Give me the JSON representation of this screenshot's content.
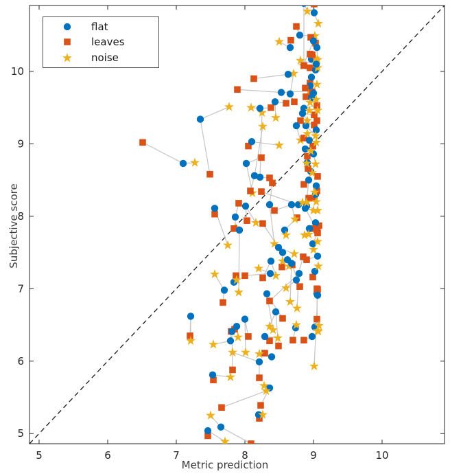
{
  "chart_data": {
    "type": "scatter",
    "title": "",
    "xlabel": "Metric prediction",
    "ylabel": "Subjective score",
    "xlim": [
      4.86,
      10.91
    ],
    "ylim": [
      4.86,
      10.91
    ],
    "xticks": [
      5,
      6,
      7,
      8,
      9,
      10
    ],
    "yticks": [
      5,
      6,
      7,
      8,
      9,
      10
    ],
    "grid": false,
    "legend_position": "top-left",
    "identity_line": {
      "style": "dashed",
      "color": "#1a1a1a",
      "from": [
        4.86,
        4.86
      ],
      "to": [
        10.91,
        10.91
      ]
    },
    "link_line_color": "#c8c8c8",
    "series_meta": [
      {
        "name": "flat",
        "marker": "circle",
        "color": "#0072BD"
      },
      {
        "name": "leaves",
        "marker": "square",
        "color": "#D95319"
      },
      {
        "name": "noise",
        "marker": "star",
        "color": "#EDB120"
      }
    ],
    "groups": [
      {
        "flat": [
          7.1,
          8.73
        ],
        "leaves": [
          6.51,
          9.02
        ],
        "noise": [
          7.27,
          8.74
        ]
      },
      {
        "flat": [
          7.35,
          9.34
        ],
        "leaves": [
          7.49,
          8.58
        ],
        "noise": [
          7.77,
          9.51
        ]
      },
      {
        "flat": [
          7.56,
          8.11
        ],
        "leaves": [
          7.56,
          8.03
        ],
        "noise": [
          7.75,
          7.6
        ]
      },
      {
        "flat": [
          7.21,
          6.62
        ],
        "leaves": [
          7.2,
          6.35
        ],
        "noise": [
          7.21,
          6.28
        ]
      },
      {
        "flat": [
          7.53,
          5.81
        ],
        "leaves": [
          7.54,
          5.74
        ],
        "noise": [
          7.79,
          5.78
        ]
      },
      {
        "flat": [
          7.46,
          5.04
        ],
        "leaves": [
          7.46,
          4.97
        ],
        "noise": [
          7.71,
          4.89
        ]
      },
      {
        "flat": [
          7.65,
          5.09
        ],
        "leaves": [
          8.09,
          4.86
        ],
        "noise": [
          7.5,
          5.25
        ]
      },
      {
        "flat": [
          7.79,
          6.28
        ],
        "leaves": [
          7.8,
          6.41
        ],
        "noise": [
          7.54,
          6.23
        ]
      },
      {
        "flat": [
          7.84,
          7.09
        ],
        "leaves": [
          7.87,
          7.18
        ],
        "noise": [
          7.88,
          7.12
        ]
      },
      {
        "flat": [
          7.7,
          6.98
        ],
        "leaves": [
          7.68,
          6.81
        ],
        "noise": [
          7.56,
          7.2
        ]
      },
      {
        "flat": [
          7.86,
          7.99
        ],
        "leaves": [
          7.91,
          8.18
        ],
        "noise": [
          7.86,
          7.84
        ]
      },
      {
        "flat": [
          7.92,
          7.81
        ],
        "leaves": [
          7.84,
          7.83
        ],
        "noise": [
          7.91,
          6.95
        ]
      },
      {
        "flat": [
          8.01,
          8.14
        ],
        "leaves": [
          8.03,
          7.94
        ],
        "noise": [
          8.16,
          7.91
        ]
      },
      {
        "flat": [
          8.02,
          8.73
        ],
        "leaves": [
          8.24,
          8.81
        ],
        "noise": [
          8.11,
          8.32
        ]
      },
      {
        "flat": [
          8.14,
          8.56
        ],
        "leaves": [
          8.08,
          8.35
        ],
        "noise": [
          8.26,
          9.24
        ]
      },
      {
        "flat": [
          8.22,
          8.54
        ],
        "leaves": [
          8.36,
          8.53
        ],
        "noise": [
          8.25,
          9.43
        ]
      },
      {
        "flat": [
          8.36,
          8.16
        ],
        "leaves": [
          8.4,
          8.46
        ],
        "noise": [
          8.43,
          7.62
        ]
      },
      {
        "flat": [
          8.1,
          9.03
        ],
        "leaves": [
          8.05,
          8.97
        ],
        "noise": [
          8.5,
          8.98
        ]
      },
      {
        "flat": [
          8.22,
          9.49
        ],
        "leaves": [
          8.38,
          9.5
        ],
        "noise": [
          8.09,
          9.5
        ]
      },
      {
        "flat": [
          8.44,
          9.58
        ],
        "leaves": [
          8.6,
          9.56
        ],
        "noise": [
          8.45,
          9.36
        ]
      },
      {
        "flat": [
          8.66,
          9.69
        ],
        "leaves": [
          8.72,
          9.58
        ],
        "noise": [
          8.71,
          9.97
        ]
      },
      {
        "flat": [
          8.66,
          10.33
        ],
        "leaves": [
          8.67,
          10.43
        ],
        "noise": [
          8.5,
          10.41
        ]
      },
      {
        "flat": [
          8.8,
          10.5
        ],
        "leaves": [
          8.75,
          10.62
        ],
        "noise": [
          9.02,
          10.49
        ]
      },
      {
        "flat": [
          9.01,
          10.81
        ],
        "leaves": [
          9.01,
          10.93
        ],
        "noise": [
          9.07,
          10.66
        ]
      },
      {
        "flat": [
          8.53,
          9.71
        ],
        "leaves": [
          7.89,
          9.75
        ],
        "noise": [
          8.94,
          9.73
        ]
      },
      {
        "flat": [
          8.75,
          9.25
        ],
        "leaves": [
          8.81,
          9.32
        ],
        "noise": [
          8.81,
          9.05
        ]
      },
      {
        "flat": [
          8.58,
          7.81
        ],
        "leaves": [
          8.76,
          7.98
        ],
        "noise": [
          8.6,
          7.74
        ]
      },
      {
        "flat": [
          8.68,
          8.16
        ],
        "leaves": [
          8.43,
          8.08
        ],
        "noise": [
          8.73,
          7.96
        ]
      },
      {
        "flat": [
          8.78,
          8.16
        ],
        "leaves": [
          8.24,
          8.34
        ],
        "noise": [
          8.84,
          8.19
        ]
      },
      {
        "flat": [
          8.49,
          7.57
        ],
        "leaves": [
          8.26,
          7.9
        ],
        "noise": [
          8.72,
          7.48
        ]
      },
      {
        "flat": [
          8.55,
          7.5
        ],
        "leaves": [
          8.54,
          7.3
        ],
        "noise": [
          8.55,
          7.38
        ]
      },
      {
        "flat": [
          8.38,
          7.38
        ],
        "leaves": [
          8.26,
          7.15
        ],
        "noise": [
          8.45,
          7.18
        ]
      },
      {
        "flat": [
          8.37,
          7.21
        ],
        "leaves": [
          8.0,
          7.18
        ],
        "noise": [
          8.2,
          7.28
        ]
      },
      {
        "flat": [
          8.62,
          7.4
        ],
        "leaves": [
          8.69,
          7.33
        ],
        "noise": [
          8.64,
          7.31
        ]
      },
      {
        "flat": [
          8.68,
          7.35
        ],
        "leaves": [
          8.8,
          7.03
        ],
        "noise": [
          8.66,
          6.82
        ]
      },
      {
        "flat": [
          8.75,
          7.12
        ],
        "leaves": [
          8.85,
          7.44
        ],
        "noise": [
          8.6,
          7.01
        ]
      },
      {
        "flat": [
          8.79,
          7.21
        ],
        "leaves": [
          8.36,
          6.83
        ],
        "noise": [
          8.76,
          6.73
        ]
      },
      {
        "flat": [
          8.32,
          6.93
        ],
        "leaves": [
          8.55,
          6.59
        ],
        "noise": [
          8.41,
          6.43
        ]
      },
      {
        "flat": [
          8.45,
          6.68
        ],
        "leaves": [
          8.49,
          6.21
        ],
        "noise": [
          8.36,
          6.48
        ]
      },
      {
        "flat": [
          8.0,
          6.58
        ],
        "leaves": [
          8.05,
          6.34
        ],
        "noise": [
          8.01,
          6.12
        ]
      },
      {
        "flat": [
          7.88,
          6.48
        ],
        "leaves": [
          7.85,
          6.44
        ],
        "noise": [
          7.9,
          6.33
        ]
      },
      {
        "flat": [
          8.29,
          6.34
        ],
        "leaves": [
          8.36,
          6.28
        ],
        "noise": [
          8.48,
          6.32
        ]
      },
      {
        "flat": [
          8.74,
          6.46
        ],
        "leaves": [
          8.7,
          6.29
        ],
        "noise": [
          8.75,
          6.5
        ]
      },
      {
        "flat": [
          8.39,
          6.06
        ],
        "leaves": [
          8.29,
          6.11
        ],
        "noise": [
          8.21,
          6.1
        ]
      },
      {
        "flat": [
          8.21,
          5.99
        ],
        "leaves": [
          8.21,
          5.77
        ],
        "noise": [
          7.82,
          6.12
        ]
      },
      {
        "flat": [
          8.36,
          5.63
        ],
        "leaves": [
          8.23,
          5.39
        ],
        "noise": [
          8.28,
          5.66
        ]
      },
      {
        "flat": [
          8.2,
          5.26
        ],
        "leaves": [
          8.21,
          5.21
        ],
        "noise": [
          8.26,
          5.26
        ]
      },
      {
        "leaves": [
          7.66,
          5.36
        ],
        "noise": [
          8.31,
          5.59
        ]
      },
      {
        "flat": [
          7.81,
          6.41
        ],
        "leaves": [
          7.82,
          5.88
        ]
      },
      {
        "flat": [
          8.63,
          9.96
        ],
        "leaves": [
          8.13,
          9.9
        ]
      },
      {
        "flat": [
          8.98,
          6.34
        ],
        "leaves": [
          8.86,
          6.29
        ],
        "noise": [
          9.07,
          6.41
        ]
      },
      {
        "flat": [
          9.02,
          6.47
        ],
        "leaves": [
          9.05,
          6.58
        ],
        "noise": [
          9.08,
          6.49
        ]
      },
      {
        "flat": [
          9.05,
          6.93
        ],
        "leaves": [
          9.05,
          7.0
        ],
        "noise": [
          9.06,
          6.42
        ]
      },
      {
        "flat": [
          9.06,
          6.91
        ],
        "leaves": [
          9.06,
          6.99
        ],
        "noise": [
          9.01,
          5.93
        ]
      },
      {
        "flat": [
          9.02,
          7.24
        ],
        "leaves": [
          8.99,
          7.16
        ],
        "noise": [
          9.07,
          7.31
        ]
      },
      {
        "flat": [
          9.06,
          7.45
        ],
        "leaves": [
          8.9,
          7.4
        ],
        "noise": [
          9.0,
          7.54
        ]
      },
      {
        "flat": [
          8.99,
          7.62
        ],
        "leaves": [
          9.06,
          7.77
        ],
        "noise": [
          9.06,
          7.65
        ]
      },
      {
        "flat": [
          9.03,
          7.91
        ],
        "leaves": [
          9.08,
          7.87
        ],
        "noise": [
          8.87,
          7.74
        ]
      },
      {
        "flat": [
          8.94,
          7.83
        ],
        "leaves": [
          8.99,
          7.83
        ],
        "noise": [
          8.93,
          7.75
        ]
      },
      {
        "flat": [
          8.88,
          8.11
        ],
        "leaves": [
          9.05,
          7.81
        ],
        "noise": [
          9.0,
          8.08
        ]
      },
      {
        "flat": [
          8.9,
          8.14
        ],
        "leaves": [
          8.93,
          8.25
        ],
        "noise": [
          9.06,
          8.08
        ]
      },
      {
        "flat": [
          9.03,
          8.3
        ],
        "leaves": [
          9.01,
          8.25
        ],
        "noise": [
          9.04,
          8.2
        ]
      },
      {
        "flat": [
          8.93,
          8.5
        ],
        "leaves": [
          8.86,
          8.44
        ],
        "noise": [
          8.9,
          8.19
        ]
      },
      {
        "flat": [
          9.04,
          8.42
        ],
        "leaves": [
          9.05,
          8.35
        ],
        "noise": [
          9.02,
          8.33
        ]
      },
      {
        "flat": [
          8.96,
          8.62
        ],
        "leaves": [
          9.06,
          8.55
        ],
        "noise": [
          8.98,
          8.6
        ]
      },
      {
        "flat": [
          8.91,
          8.74
        ],
        "leaves": [
          8.92,
          8.66
        ],
        "noise": [
          8.9,
          8.73
        ]
      },
      {
        "flat": [
          9.0,
          8.86
        ],
        "leaves": [
          8.91,
          8.83
        ],
        "noise": [
          9.03,
          8.72
        ]
      },
      {
        "flat": [
          8.88,
          8.93
        ],
        "leaves": [
          8.99,
          8.97
        ],
        "noise": [
          8.96,
          8.9
        ]
      },
      {
        "flat": [
          8.94,
          9.05
        ],
        "leaves": [
          8.86,
          9.08
        ],
        "noise": [
          9.04,
          9.02
        ]
      },
      {
        "flat": [
          9.04,
          9.19
        ],
        "leaves": [
          9.01,
          9.26
        ],
        "noise": [
          8.91,
          9.14
        ]
      },
      {
        "flat": [
          8.89,
          9.25
        ],
        "leaves": [
          9.05,
          9.32
        ],
        "noise": [
          9.03,
          9.11
        ]
      },
      {
        "flat": [
          8.84,
          9.42
        ],
        "leaves": [
          9.01,
          9.4
        ],
        "noise": [
          8.91,
          9.32
        ]
      },
      {
        "flat": [
          8.86,
          9.49
        ],
        "leaves": [
          9.05,
          9.53
        ],
        "noise": [
          8.94,
          9.46
        ]
      },
      {
        "flat": [
          8.97,
          9.64
        ],
        "leaves": [
          8.89,
          9.65
        ],
        "noise": [
          9.06,
          9.46
        ]
      },
      {
        "flat": [
          9.0,
          9.7
        ],
        "leaves": [
          8.98,
          9.72
        ],
        "noise": [
          9.04,
          9.61
        ]
      },
      {
        "flat": [
          8.95,
          9.8
        ],
        "leaves": [
          8.95,
          9.84
        ],
        "noise": [
          9.05,
          9.82
        ]
      },
      {
        "flat": [
          8.97,
          9.92
        ],
        "leaves": [
          8.88,
          9.77
        ],
        "noise": [
          8.95,
          9.57
        ]
      },
      {
        "flat": [
          9.03,
          10.02
        ],
        "leaves": [
          8.95,
          10.05
        ],
        "noise": [
          9.06,
          10.05
        ]
      },
      {
        "flat": [
          8.97,
          10.17
        ],
        "leaves": [
          8.95,
          10.24
        ],
        "noise": [
          9.03,
          10.18
        ]
      },
      {
        "flat": [
          9.05,
          10.33
        ],
        "leaves": [
          9.03,
          10.39
        ],
        "noise": [
          9.06,
          10.16
        ]
      },
      {
        "flat": [
          9.04,
          10.1
        ],
        "leaves": [
          8.98,
          10.23
        ],
        "noise": [
          8.81,
          10.15
        ]
      },
      {
        "flat": [
          9.0,
          10.42
        ],
        "leaves": [
          8.96,
          10.47
        ],
        "noise": [
          8.85,
          10.08
        ]
      },
      {
        "flat": [
          8.86,
          10.94
        ],
        "leaves": [
          8.86,
          10.08
        ],
        "noise": [
          8.91,
          10.83
        ]
      }
    ]
  },
  "legend": {
    "items": [
      {
        "label": "flat",
        "marker": "circle",
        "color": "#0072BD"
      },
      {
        "label": "leaves",
        "marker": "square",
        "color": "#D95319"
      },
      {
        "label": "noise",
        "marker": "star",
        "color": "#EDB120"
      }
    ]
  },
  "axes_text": {
    "xlabel": "Metric prediction",
    "ylabel": "Subjective score"
  }
}
